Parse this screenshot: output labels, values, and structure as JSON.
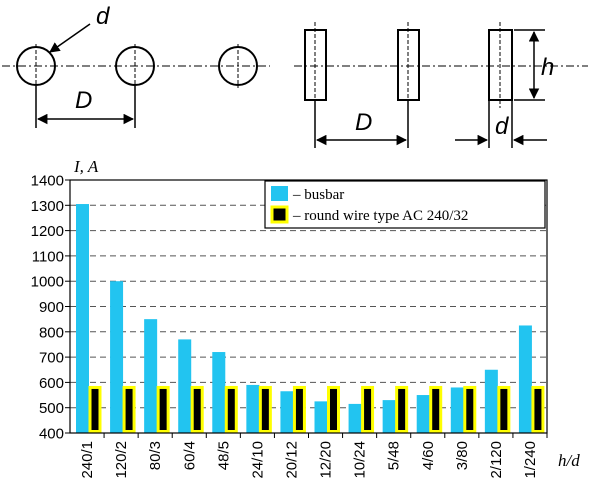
{
  "diagram": {
    "label_d_round": "d",
    "label_D_round": "D",
    "label_h": "h",
    "label_D_bar": "D",
    "label_d_bar": "d"
  },
  "colors": {
    "busbar": "#22c4f0",
    "wire_fill": "#000000",
    "wire_border": "#ffff00",
    "grid": "#555555",
    "axis": "#000000"
  },
  "chart_data": {
    "type": "bar",
    "ylabel": "I, A",
    "xlabel": "h/d",
    "ylim": [
      400,
      1400
    ],
    "yticks": [
      400,
      500,
      600,
      700,
      800,
      900,
      1000,
      1100,
      1200,
      1300,
      1400
    ],
    "grid": "horizontal dashed",
    "legend_position": "top-right",
    "categories": [
      "240/1",
      "120/2",
      "80/3",
      "60/4",
      "48/5",
      "24/10",
      "20/12",
      "12/20",
      "10/24",
      "5/48",
      "4/60",
      "3/80",
      "2/120",
      "1/240"
    ],
    "series": [
      {
        "name": "– busbar",
        "values": [
          1305,
          1000,
          850,
          770,
          720,
          590,
          565,
          525,
          515,
          530,
          550,
          580,
          650,
          825
        ]
      },
      {
        "name": "– round wire type AC 240/32",
        "values": [
          580,
          580,
          580,
          580,
          580,
          580,
          580,
          580,
          580,
          580,
          580,
          580,
          580,
          580
        ]
      }
    ]
  }
}
